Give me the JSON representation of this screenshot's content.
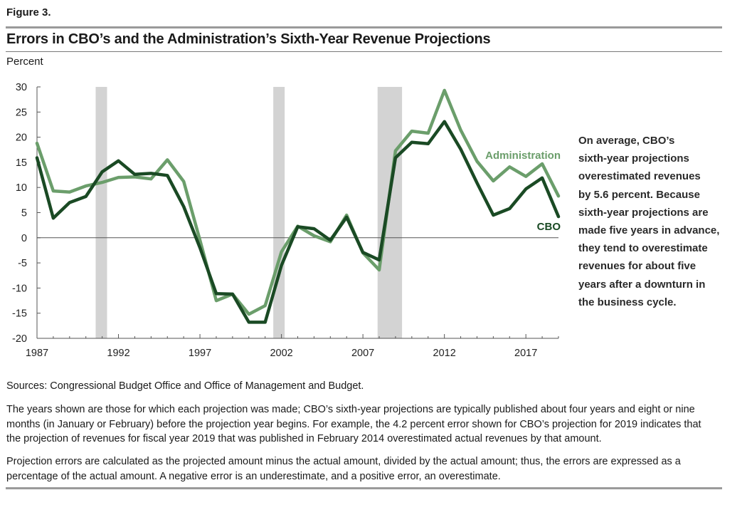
{
  "figure_label": "Figure 3.",
  "title": "Errors in CBO’s and the Administration’s Sixth-Year Revenue Projections",
  "y_unit": "Percent",
  "note_lines": [
    "On average, CBO’s",
    "sixth-year projections",
    "overestimated revenues",
    "by 5.6 percent. Because",
    "sixth-year projections are",
    "made five years in advance,",
    "they tend to overestimate",
    "revenues for about five",
    "years after a downturn in",
    "the business cycle."
  ],
  "sources": "Sources: Congressional Budget Office and Office of Management and Budget.",
  "paragraph1": "The years shown are those for which each projection was made; CBO’s sixth-year projections are typically published about four years and eight or nine months (in January or February) before the projection year begins. For example, the 4.2 percent error shown for CBO’s projection for 2019 indicates that the projection of revenues for fiscal year 2019 that was published in February 2014 overestimated actual revenues by that amount.",
  "paragraph2": "Projection errors are calculated as the projected amount minus the actual amount, divided by the actual amount; thus, the errors are expressed as a percentage of the actual amount. A negative error is an underestimate, and a positive error, an overestimate.",
  "chart_data": {
    "type": "line",
    "title": "Errors in CBO’s and the Administration’s Sixth-Year Revenue Projections",
    "ylabel": "Percent",
    "xlabel": "",
    "xlim": [
      1987,
      2019
    ],
    "ylim": [
      -20,
      30
    ],
    "y_ticks": [
      30,
      25,
      20,
      15,
      10,
      5,
      0,
      -5,
      -10,
      -15,
      -20
    ],
    "y_tick_labels": [
      "30",
      "25",
      "20",
      "15",
      "10",
      "5",
      "0",
      "-5",
      "-10",
      "-15",
      "-20"
    ],
    "x_ticks": [
      1987,
      1992,
      1997,
      2002,
      2007,
      2012,
      2017
    ],
    "x_tick_labels": [
      "1987",
      "1992",
      "1997",
      "2002",
      "2007",
      "2012",
      "2017"
    ],
    "recessions": [
      [
        1990.6,
        1991.3
      ],
      [
        2001.5,
        2002.2
      ],
      [
        2007.9,
        2009.4
      ]
    ],
    "series": [
      {
        "name": "Administration",
        "color": "#6b9e6b",
        "x": [
          1987,
          1988,
          1989,
          1990,
          1991,
          1992,
          1993,
          1994,
          1995,
          1996,
          1997,
          1998,
          1999,
          2000,
          2001,
          2002,
          2003,
          2004,
          2005,
          2006,
          2007,
          2008,
          2009,
          2010,
          2011,
          2012,
          2013,
          2014,
          2015,
          2016,
          2017,
          2018,
          2019
        ],
        "values": [
          18.8,
          9.3,
          9.1,
          10.3,
          11.0,
          12.0,
          12.1,
          11.7,
          15.5,
          11.2,
          -0.5,
          -12.5,
          -11.2,
          -15.2,
          -13.5,
          -2.8,
          2.3,
          0.4,
          -0.8,
          4.5,
          -3.0,
          -6.4,
          17.3,
          21.2,
          20.8,
          29.3,
          21.4,
          15.2,
          11.3,
          14.1,
          12.2,
          14.7,
          8.3
        ]
      },
      {
        "name": "CBO",
        "color": "#1a4a24",
        "x": [
          1987,
          1988,
          1989,
          1990,
          1991,
          1992,
          1993,
          1994,
          1995,
          1996,
          1997,
          1998,
          1999,
          2000,
          2001,
          2002,
          2003,
          2004,
          2005,
          2006,
          2007,
          2008,
          2009,
          2010,
          2011,
          2012,
          2013,
          2014,
          2015,
          2016,
          2017,
          2018,
          2019
        ],
        "values": [
          15.9,
          3.9,
          7.0,
          8.2,
          13.1,
          15.3,
          12.6,
          12.8,
          12.4,
          6.2,
          -2.0,
          -11.1,
          -11.2,
          -16.8,
          -16.8,
          -5.5,
          2.2,
          1.8,
          -0.5,
          4.1,
          -2.9,
          -4.4,
          15.9,
          19.0,
          18.7,
          23.1,
          17.6,
          10.9,
          4.5,
          5.8,
          9.7,
          11.9,
          4.2
        ]
      }
    ],
    "series_labels": [
      "Administration",
      "CBO"
    ]
  },
  "colors": {
    "administration": "#6b9e6b",
    "cbo": "#1a4a24",
    "recession_band": "#d3d3d3",
    "axis": "#555555",
    "rule": "#9a9a9a"
  }
}
